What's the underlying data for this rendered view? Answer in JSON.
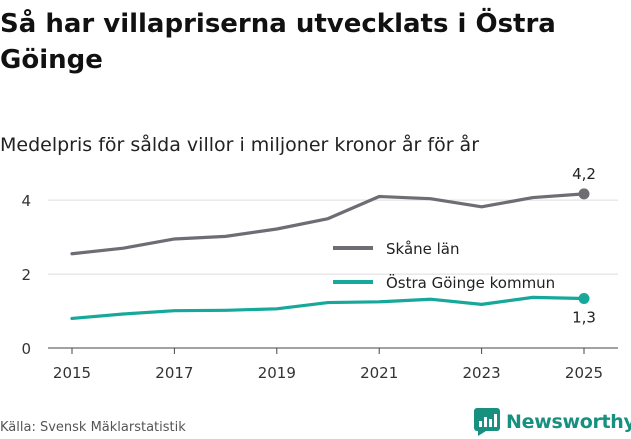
{
  "title": "Så har villapriserna utvecklats i Östra Göinge",
  "subtitle": "Medelpris för sålda villor i miljoner kronor år för år",
  "source": "Källa: Svensk Mäklarstatistik",
  "brand": "Newsworthy",
  "colors": {
    "skane": "#6d6d73",
    "ostra": "#16a89a",
    "grid": "#dddddd",
    "brand": "#17907f"
  },
  "chart_data": {
    "type": "line",
    "title": "Så har villapriserna utvecklats i Östra Göinge",
    "subtitle": "Medelpris för sålda villor i miljoner kronor år för år",
    "xlabel": "",
    "ylabel": "",
    "x": [
      2015,
      2016,
      2017,
      2018,
      2019,
      2020,
      2021,
      2022,
      2023,
      2024,
      2025
    ],
    "xticks": [
      "2015",
      "2017",
      "2019",
      "2021",
      "2023",
      "2025"
    ],
    "yticks": [
      "0",
      "2",
      "4"
    ],
    "ylim": [
      0,
      4.6
    ],
    "grid": true,
    "legend_position": "center-right",
    "series": [
      {
        "name": "Skåne län",
        "values": [
          2.55,
          2.7,
          2.95,
          3.02,
          3.22,
          3.5,
          4.1,
          4.04,
          3.82,
          4.07,
          4.17
        ],
        "end_label": "4,2"
      },
      {
        "name": "Östra Göinge kommun",
        "values": [
          0.8,
          0.92,
          1.01,
          1.02,
          1.06,
          1.23,
          1.25,
          1.32,
          1.18,
          1.37,
          1.34
        ],
        "end_label": "1,3"
      }
    ]
  }
}
